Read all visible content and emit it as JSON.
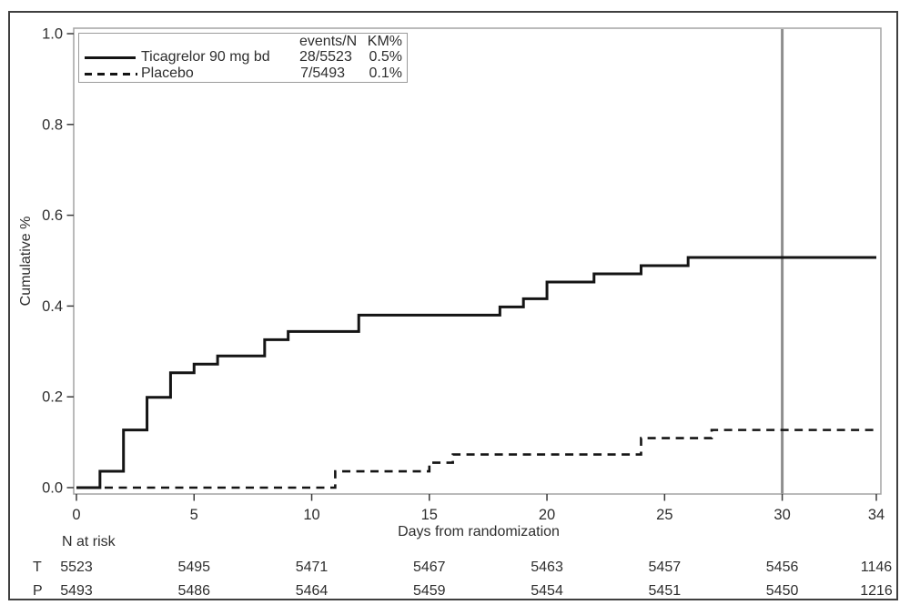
{
  "figure": {
    "y_axis_label": "Cumulative %",
    "x_axis_label": "Days from randomization",
    "n_at_risk_label": "N at risk"
  },
  "legend": {
    "col_events": "events/N",
    "col_km": "KM%",
    "rows": [
      {
        "label": "Ticagrelor 90 mg bd",
        "events": "28/5523",
        "km": "0.5%",
        "line": "solid"
      },
      {
        "label": "Placebo",
        "events": "7/5493",
        "km": "0.1%",
        "line": "dashed"
      }
    ]
  },
  "colors": {
    "curve": "#141414",
    "reference_line": "#8e8e8e",
    "frame": "#a3a3a3",
    "tick": "#3a3a3a",
    "text": "#2e2e2e"
  },
  "chart_data": {
    "type": "line",
    "subtype": "kaplan-meier-step",
    "title": "",
    "xlabel": "Days from randomization",
    "ylabel": "Cumulative %",
    "xlim": [
      0,
      34
    ],
    "ylim": [
      0.0,
      1.0
    ],
    "x_ticks": [
      0,
      5,
      10,
      15,
      20,
      25,
      30,
      34
    ],
    "y_ticks": [
      0.0,
      0.2,
      0.4,
      0.6,
      0.8,
      1.0
    ],
    "grid": false,
    "legend_position": "top-left",
    "reference_line_x": 30,
    "series": [
      {
        "name": "Ticagrelor 90 mg bd",
        "line": "solid",
        "color": "#141414",
        "events": 28,
        "n": 5523,
        "km_pct": "0.5%",
        "steps": [
          [
            0,
            0
          ],
          [
            1,
            0.036
          ],
          [
            2,
            0.127
          ],
          [
            3,
            0.199
          ],
          [
            4,
            0.253
          ],
          [
            5,
            0.272
          ],
          [
            6,
            0.29
          ],
          [
            8,
            0.326
          ],
          [
            9,
            0.344
          ],
          [
            12,
            0.38
          ],
          [
            18,
            0.398
          ],
          [
            19,
            0.416
          ],
          [
            20,
            0.453
          ],
          [
            22,
            0.471
          ],
          [
            24,
            0.489
          ],
          [
            26,
            0.507
          ]
        ],
        "end_x": 34
      },
      {
        "name": "Placebo",
        "line": "dashed",
        "color": "#141414",
        "events": 7,
        "n": 5493,
        "km_pct": "0.1%",
        "steps": [
          [
            0,
            0
          ],
          [
            11,
            0.036
          ],
          [
            15,
            0.055
          ],
          [
            16,
            0.073
          ],
          [
            24,
            0.109
          ],
          [
            27,
            0.127
          ]
        ],
        "end_x": 34
      }
    ],
    "n_at_risk": {
      "days": [
        0,
        5,
        10,
        15,
        20,
        25,
        30,
        34
      ],
      "rows": [
        {
          "label": "T",
          "values": [
            5523,
            5495,
            5471,
            5467,
            5463,
            5457,
            5456,
            1146
          ]
        },
        {
          "label": "P",
          "values": [
            5493,
            5486,
            5464,
            5459,
            5454,
            5451,
            5450,
            1216
          ]
        }
      ]
    }
  }
}
